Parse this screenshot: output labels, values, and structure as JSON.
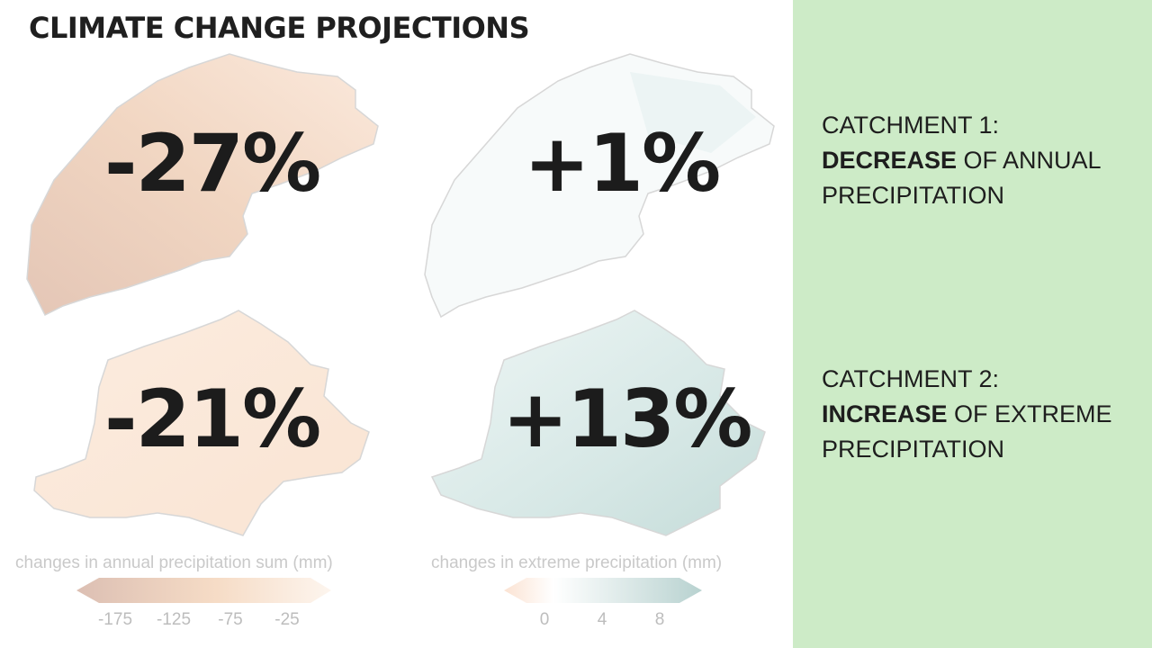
{
  "title": "CLIMATE CHANGE PROJECTIONS",
  "maps": [
    {
      "value": "-27%"
    },
    {
      "value": "+1%"
    },
    {
      "value": "-21%"
    },
    {
      "value": "+13%"
    }
  ],
  "legend_left": {
    "caption": "changes in annual precipitation sum (mm)",
    "ticks": [
      "-175",
      "-125",
      "-75",
      "-25"
    ]
  },
  "legend_right": {
    "caption": "changes in extreme precipitation (mm)",
    "ticks": [
      "0",
      "4",
      "8"
    ]
  },
  "panel": {
    "catchment1_title": "CATCHMENT 1:",
    "catchment1_strong": "DECREASE",
    "catchment1_rest": " OF ANNUAL",
    "catchment1_last": "PRECIPITATION",
    "catchment2_title": "CATCHMENT 2:",
    "catchment2_strong": "INCREASE",
    "catchment2_rest": " OF EXTREME",
    "catchment2_last": "PRECIPITATION"
  },
  "colors": {
    "panel_bg": "#cdebc7",
    "dry_dark": "#e6c9b8",
    "dry_light": "#fbe6d4",
    "wet_light": "#eef5f4",
    "wet_dark": "#cfe1df"
  }
}
